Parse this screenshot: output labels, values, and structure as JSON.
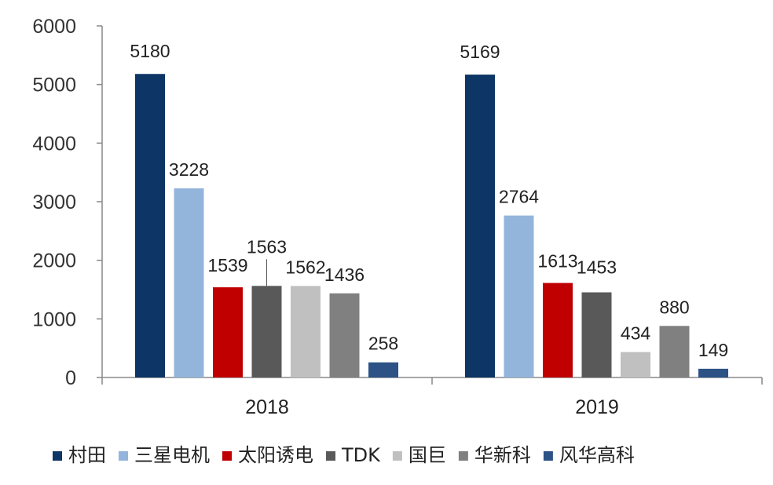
{
  "chart_data": {
    "type": "bar",
    "title": "",
    "xlabel": "",
    "ylabel": "",
    "categories": [
      "2018",
      "2019"
    ],
    "series": [
      {
        "name": "村田",
        "color": "#0d3565",
        "values": [
          5180,
          5169
        ]
      },
      {
        "name": "三星电机",
        "color": "#93b5dc",
        "values": [
          3228,
          2764
        ]
      },
      {
        "name": "太阳诱电",
        "color": "#c00000",
        "values": [
          1539,
          1613
        ]
      },
      {
        "name": "TDK",
        "color": "#595959",
        "values": [
          1563,
          1453
        ]
      },
      {
        "name": "国巨",
        "color": "#c0c0c0",
        "values": [
          1562,
          434
        ]
      },
      {
        "name": "华新科",
        "color": "#808080",
        "values": [
          1436,
          880
        ]
      },
      {
        "name": "风华高科",
        "color": "#2c5286",
        "values": [
          258,
          149
        ]
      }
    ],
    "ylim": [
      0,
      6000
    ],
    "yticks": [
      0,
      1000,
      2000,
      3000,
      4000,
      5000,
      6000
    ],
    "grid": false,
    "legend": "bottom"
  }
}
